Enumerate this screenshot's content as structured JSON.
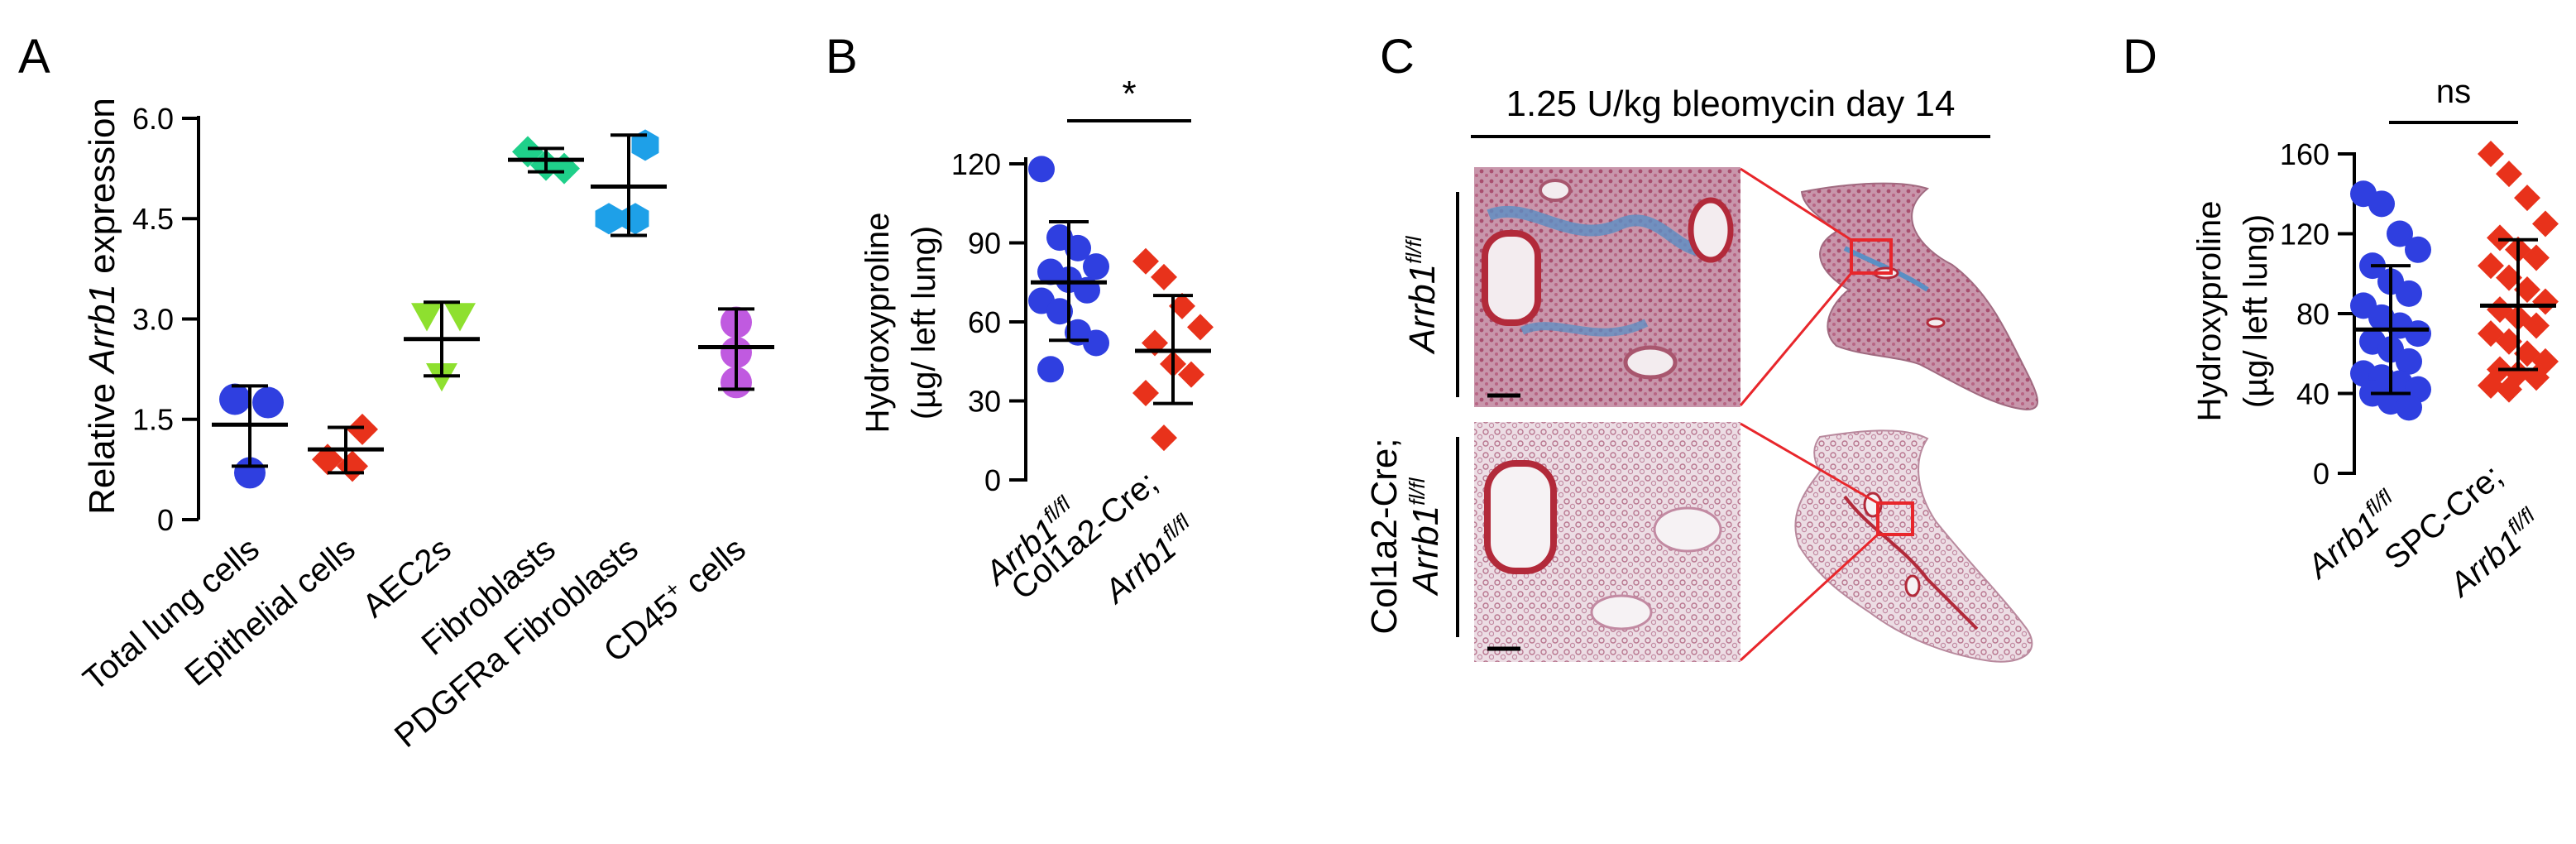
{
  "panels": {
    "A": {
      "letter": "A"
    },
    "B": {
      "letter": "B"
    },
    "C": {
      "letter": "C"
    },
    "D": {
      "letter": "D"
    }
  },
  "panel_c": {
    "treatment_label": "1.25 U/kg bleomycin day 14",
    "row1_label_italic": "Arrb1",
    "row1_label_sup": "fl/fl",
    "row2_label_line1": "Col1a2-Cre;",
    "row2_label_italic": "Arrb1",
    "row2_label_sup": "fl/fl",
    "colors": {
      "zoom_box": "#e8262b",
      "tissue_pink": "#c89cb0",
      "tissue_red": "#b22a3a",
      "collagen_blue": "#5b8fc4"
    }
  },
  "chart_data": [
    {
      "panel": "A",
      "type": "scatter",
      "ylabel_prefix": "Relative ",
      "ylabel_italic": "Arrb1",
      "ylabel_suffix": " expression",
      "ylim": [
        0,
        6.0
      ],
      "yticks": [
        "0",
        "1.5",
        "3.0",
        "4.5",
        "6.0"
      ],
      "categories": [
        "Total lung cells",
        "Epithelial cells",
        "AEC2s",
        "Fibroblasts",
        "PDGFRa Fibroblasts",
        "CD45"
      ],
      "category_sups": [
        "",
        "",
        "",
        "",
        "",
        "+"
      ],
      "category_suffix": [
        "",
        "",
        "",
        "",
        "",
        " cells"
      ],
      "series": [
        {
          "category": "Total lung cells",
          "marker": "circle",
          "color": "#2f3fe0",
          "points": [
            1.8,
            1.75,
            0.7
          ],
          "mean": 1.42,
          "sd_low": 0.8,
          "sd_high": 2.0
        },
        {
          "category": "Epithelial cells",
          "marker": "diamond",
          "color": "#e8321b",
          "points": [
            1.35,
            0.9,
            0.8
          ],
          "mean": 1.05,
          "sd_low": 0.7,
          "sd_high": 1.38
        },
        {
          "category": "AEC2s",
          "marker": "triangle",
          "color": "#8ee02f",
          "points": [
            3.05,
            3.05,
            2.15
          ],
          "mean": 2.7,
          "sd_low": 2.15,
          "sd_high": 3.25
        },
        {
          "category": "Fibroblasts",
          "marker": "diamond",
          "color": "#1fd08a",
          "points": [
            5.5,
            5.25,
            5.3
          ],
          "mean": 5.38,
          "sd_low": 5.2,
          "sd_high": 5.55
        },
        {
          "category": "PDGFRa Fibroblasts",
          "marker": "hexagon",
          "color": "#1ea0e8",
          "points": [
            5.6,
            4.5,
            4.5
          ],
          "mean": 4.98,
          "sd_low": 4.25,
          "sd_high": 5.75
        },
        {
          "category": "CD45",
          "marker": "circle",
          "color": "#c05ae0",
          "points": [
            2.95,
            2.5,
            2.05
          ],
          "mean": 2.58,
          "sd_low": 1.95,
          "sd_high": 3.15
        }
      ]
    },
    {
      "panel": "B",
      "type": "scatter",
      "ylabel_line1": "Hydroxyproline",
      "ylabel_line2": "(µg/ left lung)",
      "ylim": [
        0,
        120
      ],
      "yticks": [
        "0",
        "30",
        "60",
        "90",
        "120"
      ],
      "significance": "*",
      "categories": [
        {
          "italic": "Arrb1",
          "sup": "fl/fl",
          "line1": ""
        },
        {
          "italic": "Arrb1",
          "sup": "fl/fl",
          "line1": "Col1a2-Cre;"
        }
      ],
      "series": [
        {
          "marker": "circle",
          "color": "#2f3fe0",
          "points": [
            118,
            92,
            88,
            81,
            79,
            76,
            72,
            68,
            64,
            56,
            52,
            42
          ],
          "mean": 75,
          "sd_low": 53,
          "sd_high": 98
        },
        {
          "marker": "diamond",
          "color": "#e8321b",
          "points": [
            83,
            77,
            66,
            58,
            52,
            44,
            40,
            33,
            16
          ],
          "mean": 49,
          "sd_low": 29,
          "sd_high": 70
        }
      ]
    },
    {
      "panel": "D",
      "type": "scatter",
      "ylabel_line1": "Hydroxyproline",
      "ylabel_line2": "(µg/ left lung)",
      "ylim": [
        0,
        160
      ],
      "yticks": [
        "0",
        "40",
        "80",
        "120",
        "160"
      ],
      "significance": "ns",
      "categories": [
        {
          "italic": "Arrb1",
          "sup": "fl/fl",
          "line1": ""
        },
        {
          "italic": "Arrb1",
          "sup": "fl/fl",
          "line1": "SPC-Cre;"
        }
      ],
      "series": [
        {
          "marker": "circle",
          "color": "#2f3fe0",
          "points": [
            140,
            135,
            120,
            112,
            104,
            96,
            90,
            84,
            78,
            74,
            70,
            66,
            62,
            56,
            50,
            48,
            45,
            42,
            40,
            36,
            33
          ],
          "mean": 72,
          "sd_low": 40,
          "sd_high": 104
        },
        {
          "marker": "diamond",
          "color": "#e8321b",
          "points": [
            160,
            150,
            138,
            125,
            118,
            112,
            108,
            104,
            98,
            92,
            86,
            82,
            78,
            74,
            70,
            66,
            60,
            56,
            52,
            50,
            48,
            44,
            42
          ],
          "mean": 84,
          "sd_low": 52,
          "sd_high": 117
        }
      ]
    }
  ]
}
